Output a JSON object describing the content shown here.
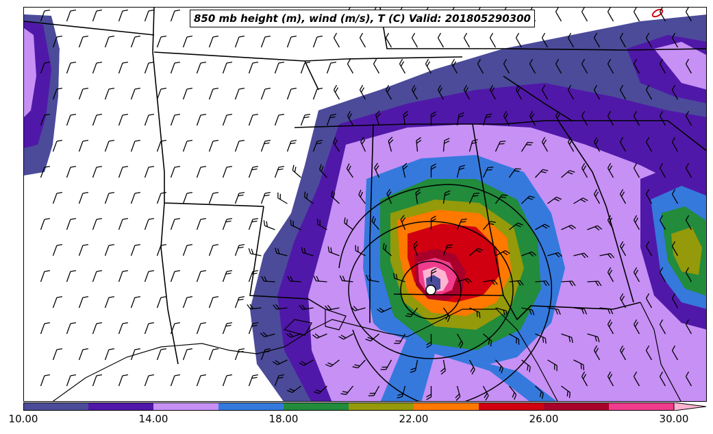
{
  "title": "850 mb height (m), wind (m/s), T (C) Valid: 201805290300",
  "colorbar": {
    "tick_labels": [
      "10.00",
      "14.00",
      "18.00",
      "22.00",
      "26.00",
      "30.00"
    ],
    "colors": [
      "#4b4b9a",
      "#5018a8",
      "#c790f5",
      "#3579dd",
      "#228b3c",
      "#949a0a",
      "#ff7800",
      "#d00010",
      "#a8002a",
      "#f03c8c",
      "#ffb4d2"
    ]
  },
  "colors": {
    "state_lines": "#000000",
    "height_contours": "#000000",
    "wind_barbs": "#000000",
    "storm_center": "#ffffff"
  }
}
